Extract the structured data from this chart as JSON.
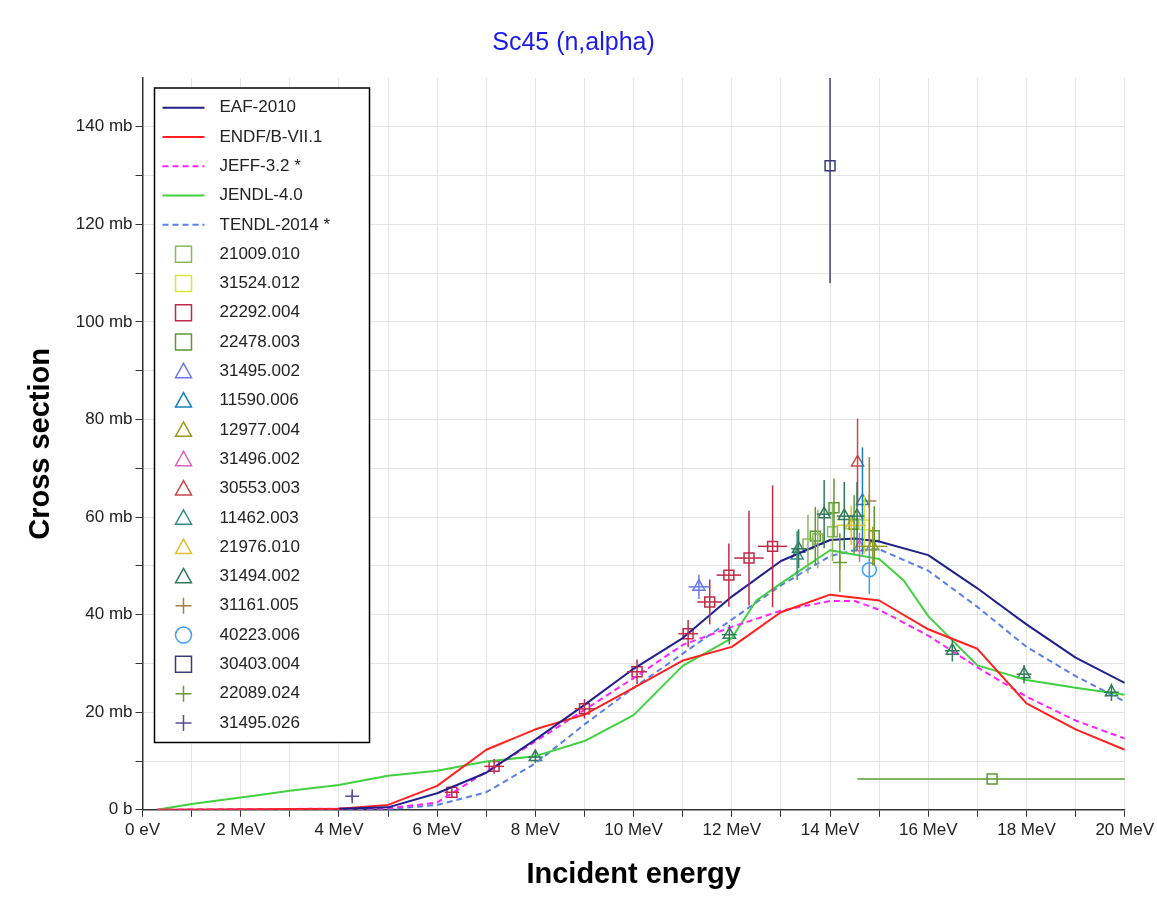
{
  "chart_data": {
    "type": "line",
    "title": "Sc45 (n,alpha)",
    "xlabel": "Incident energy",
    "ylabel": "Cross section",
    "xlim": [
      0,
      20
    ],
    "ylim": [
      0,
      150
    ],
    "xticks": [
      {
        "value": 0,
        "label": "0 eV"
      },
      {
        "value": 1,
        "label": null
      },
      {
        "value": 2,
        "label": "2 MeV"
      },
      {
        "value": 3,
        "label": null
      },
      {
        "value": 4,
        "label": "4 MeV"
      },
      {
        "value": 5,
        "label": null
      },
      {
        "value": 6,
        "label": "6 MeV"
      },
      {
        "value": 7,
        "label": null
      },
      {
        "value": 8,
        "label": "8 MeV"
      },
      {
        "value": 9,
        "label": null
      },
      {
        "value": 10,
        "label": "10 MeV"
      },
      {
        "value": 11,
        "label": null
      },
      {
        "value": 12,
        "label": "12 MeV"
      },
      {
        "value": 13,
        "label": null
      },
      {
        "value": 14,
        "label": "14 MeV"
      },
      {
        "value": 15,
        "label": null
      },
      {
        "value": 16,
        "label": "16 MeV"
      },
      {
        "value": 17,
        "label": null
      },
      {
        "value": 18,
        "label": "18 MeV"
      },
      {
        "value": 19,
        "label": null
      },
      {
        "value": 20,
        "label": "20 MeV"
      }
    ],
    "yticks": [
      {
        "value": 0,
        "label": "0 b"
      },
      {
        "value": 10,
        "label": null
      },
      {
        "value": 20,
        "label": "20 mb"
      },
      {
        "value": 30,
        "label": null
      },
      {
        "value": 40,
        "label": "40 mb"
      },
      {
        "value": 50,
        "label": null
      },
      {
        "value": 60,
        "label": "60 mb"
      },
      {
        "value": 70,
        "label": null
      },
      {
        "value": 80,
        "label": "80 mb"
      },
      {
        "value": 90,
        "label": null
      },
      {
        "value": 100,
        "label": "100 mb"
      },
      {
        "value": 110,
        "label": null
      },
      {
        "value": 120,
        "label": "120 mb"
      },
      {
        "value": 130,
        "label": null
      },
      {
        "value": 140,
        "label": "140 mb"
      }
    ],
    "grid": true,
    "legend": "top left",
    "series": [
      {
        "name": "EAF-2010",
        "type": "line",
        "color": "#1f1f8c",
        "marker": "none",
        "line_style": "solid",
        "x": [
          4,
          5,
          6,
          7,
          8,
          9,
          10,
          11,
          12,
          13,
          14,
          14.5,
          15,
          16,
          17,
          18,
          19,
          20
        ],
        "values": [
          0.2,
          0.5,
          3.4,
          7.6,
          14.4,
          21.5,
          28.9,
          35.2,
          43.7,
          51,
          55.3,
          55.6,
          55,
          52.2,
          45.4,
          38,
          31.2,
          26
        ]
      },
      {
        "name": "ENDF/B-VII.1",
        "type": "line",
        "color": "#ff2020",
        "marker": "none",
        "line_style": "solid",
        "x": [
          0.3,
          4,
          5,
          6,
          7,
          8,
          9,
          10,
          11,
          12,
          13,
          14,
          15,
          16,
          17,
          18,
          19,
          20
        ],
        "values": [
          0,
          0.2,
          1,
          4.9,
          12.3,
          16.5,
          19.5,
          25,
          30.6,
          33.4,
          40.5,
          44.1,
          42.9,
          37,
          33,
          21.8,
          16.5,
          12.3
        ]
      },
      {
        "name": "JEFF-3.2 *",
        "type": "line",
        "color": "#ff20ff",
        "marker": "none",
        "line_style": "dashed",
        "x": [
          0.3,
          5,
          6,
          7,
          8,
          9,
          10,
          11,
          12,
          13,
          14,
          14.5,
          15,
          16,
          17,
          18,
          19,
          20
        ],
        "values": [
          0,
          0.3,
          1.5,
          7.8,
          14,
          20.5,
          27,
          33.8,
          37.5,
          40.8,
          42.8,
          42.8,
          41,
          35.7,
          29.2,
          23.2,
          18.3,
          14.6
        ]
      },
      {
        "name": "JENDL-4.0",
        "type": "line",
        "color": "#40d040",
        "marker": "none",
        "line_style": "solid",
        "x": [
          0.3,
          1,
          2,
          3,
          4,
          5,
          6,
          7,
          8,
          9,
          10,
          11,
          12,
          12.5,
          13,
          14,
          15,
          15.5,
          16,
          17,
          18,
          19,
          20
        ],
        "values": [
          0,
          1.2,
          2.5,
          3.9,
          5.1,
          7,
          8,
          9.9,
          11,
          14.1,
          19.4,
          29.5,
          35.2,
          42.9,
          46.4,
          53.2,
          51.4,
          47,
          39.7,
          29.6,
          26.6,
          25,
          23.6
        ]
      },
      {
        "name": "TENDL-2014 *",
        "type": "line",
        "color": "#5a80e8",
        "marker": "none",
        "line_style": "dashed",
        "x": [
          0.3,
          5,
          6,
          7,
          8,
          9,
          10,
          11,
          12,
          13,
          14,
          14.5,
          15,
          16,
          17,
          18,
          19,
          20
        ],
        "values": [
          0,
          0.1,
          1,
          3.6,
          9.5,
          17.5,
          25,
          32,
          39,
          46,
          52,
          53.2,
          53.4,
          49,
          41.6,
          33.4,
          27.4,
          22.2
        ]
      },
      {
        "name": "21009.010",
        "type": "scatter",
        "color": "#8ab85a",
        "marker": "square",
        "x": [
          13.55,
          13.75,
          14.05
        ],
        "values": [
          54.5,
          55.5,
          57
        ],
        "errors": [
          6,
          6,
          6
        ]
      },
      {
        "name": "31524.012",
        "type": "scatter",
        "color": "#d8e83a",
        "marker": "square",
        "x": [
          14.7
        ],
        "values": [
          58.4
        ],
        "errors": [
          6
        ]
      },
      {
        "name": "22292.004",
        "type": "scatter",
        "color": "#c02848",
        "marker": "square",
        "x": [
          6.3,
          7.16,
          9.0,
          10.07,
          11.11,
          11.55,
          11.94,
          12.35,
          12.83
        ],
        "values": [
          3.6,
          8.9,
          20.7,
          28.3,
          36.1,
          42.6,
          48.1,
          51.6,
          54.0
        ],
        "errors": [
          1,
          1.5,
          2,
          2.5,
          2.8,
          4.6,
          6.5,
          9.7,
          12.5
        ],
        "xerrors": [
          0.15,
          0.2,
          0.2,
          0.2,
          0.2,
          0.25,
          0.25,
          0.3,
          0.3
        ]
      },
      {
        "name": "22478.003",
        "type": "scatter",
        "color": "#5a9a30",
        "marker": "square",
        "x": [
          13.7,
          14.08,
          14.49,
          14.9,
          17.3
        ],
        "values": [
          56.1,
          61.9,
          58.5,
          56.2,
          6.3
        ],
        "errors": [
          6,
          6,
          6,
          6,
          null
        ],
        "xerrors": [
          null,
          null,
          null,
          null,
          [
            14.56,
            20
          ]
        ]
      },
      {
        "name": "31495.002",
        "type": "scatter",
        "color": "#6a78e8",
        "marker": "triangle",
        "x": [
          11.33
        ],
        "values": [
          45.7
        ],
        "errors": [
          2.5
        ],
        "xerrors": [
          0.21
        ]
      },
      {
        "name": "11590.006",
        "type": "scatter",
        "color": "#1a7fc0",
        "marker": "triangle",
        "x": [
          14.66
        ],
        "values": [
          63.3
        ],
        "errors": [
          11
        ]
      },
      {
        "name": "12977.004",
        "type": "scatter",
        "color": "#9a9a1a",
        "marker": "triangle",
        "x": [
          14.87
        ],
        "values": [
          54.0
        ],
        "errors": [
          4
        ],
        "xerrors": [
          0.3
        ]
      },
      {
        "name": "31496.002",
        "type": "scatter",
        "color": "#e060b8",
        "marker": "triangle",
        "x": [
          14.6
        ],
        "values": [
          53.8
        ],
        "errors": [
          3
        ]
      },
      {
        "name": "30553.003",
        "type": "scatter",
        "color": "#c84848",
        "marker": "triangle",
        "x": [
          14.56
        ],
        "values": [
          71.2
        ],
        "errors": [
          9
        ]
      },
      {
        "name": "11462.003",
        "type": "scatter",
        "color": "#3a8a8a",
        "marker": "triangle",
        "x": [
          13.33
        ],
        "values": [
          52.1
        ],
        "errors": [
          5
        ]
      },
      {
        "name": "21976.010",
        "type": "scatter",
        "color": "#e0c030",
        "marker": "triangle",
        "x": [
          14.43
        ],
        "values": [
          58.3
        ],
        "errors": [
          4
        ],
        "xerrors": [
          0.3
        ]
      },
      {
        "name": "31494.002",
        "type": "scatter",
        "color": "#2f7a5a",
        "marker": "triangle",
        "x": [
          8.0,
          11.95,
          13.36,
          13.88,
          14.29,
          14.55,
          16.49,
          17.95,
          19.73
        ],
        "values": [
          10.8,
          35.9,
          53.5,
          60.6,
          60.2,
          60.2,
          32.6,
          27.8,
          24.1
        ],
        "errors": [
          1.2,
          2,
          4,
          7,
          7,
          7,
          2.2,
          1.9,
          1.8
        ],
        "xerrors": [
          0.15,
          0.15,
          0.15,
          0.15,
          0.15,
          0.15,
          0.15,
          0.15,
          0.15
        ]
      },
      {
        "name": "31161.005",
        "type": "scatter",
        "color": "#a08040",
        "marker": "cross",
        "x": [
          14.8
        ],
        "values": [
          63.3
        ],
        "errors": [
          9
        ]
      },
      {
        "name": "40223.006",
        "type": "scatter",
        "color": "#40a0f0",
        "marker": "circle",
        "x": [
          14.8
        ],
        "values": [
          49.2
        ],
        "errors": [
          5
        ]
      },
      {
        "name": "30403.004",
        "type": "scatter",
        "color": "#3a3a7a",
        "marker": "square",
        "x": [
          14
        ],
        "values": [
          132
        ],
        "errors": [
          [
            108,
            150
          ]
        ]
      },
      {
        "name": "22089.024",
        "type": "scatter",
        "color": "#6a9a30",
        "marker": "cross",
        "x": [
          14.2
        ],
        "values": [
          50.7
        ],
        "errors": [
          6
        ]
      },
      {
        "name": "31495.026",
        "type": "scatter",
        "color": "#5a4a9a",
        "marker": "cross",
        "x": [
          4.27
        ],
        "values": [
          2.8
        ],
        "errors": [
          0.8
        ]
      }
    ]
  }
}
